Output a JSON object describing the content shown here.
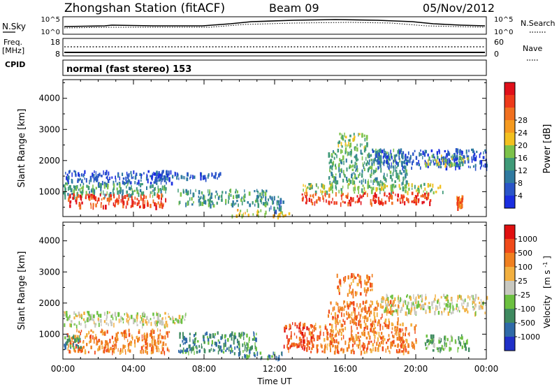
{
  "header": {
    "station": "Zhongshan Station (fitACF)",
    "beam": "Beam 09",
    "date": "05/Nov/2012"
  },
  "status_panels": {
    "nsky_label": "N.Sky",
    "nsky_ticks": [
      "10^5",
      "10^0"
    ],
    "nsearch_label": "N.Search",
    "nsearch_ticks": [
      "10^5",
      "10^0"
    ],
    "freq_label_1": "Freq.",
    "freq_label_2": "[MHz]",
    "freq_ticks": [
      "18",
      "8"
    ],
    "nave_label": "Nave",
    "nave_ticks": [
      "60",
      "0"
    ],
    "cpid_label": "CPID",
    "cpid_value": "normal (fast stereo) 153"
  },
  "chart_data": [
    {
      "type": "heatmap",
      "panel": "power",
      "ylabel": "Slant Range [km]",
      "yticks": [
        "1000",
        "2000",
        "3000",
        "4000"
      ],
      "ylim": [
        200,
        4600
      ],
      "xlim": [
        0,
        24
      ],
      "colorbar_label": "Power [dB]",
      "colorbar_ticks": [
        "4",
        "8",
        "12",
        "16",
        "20",
        "24",
        "28"
      ],
      "colorbar_colors": [
        "#1a2ee0",
        "#2a55c8",
        "#2f7aa0",
        "#3f9a78",
        "#7cc24a",
        "#f2c020",
        "#f59a20",
        "#f07020",
        "#ee3a1a",
        "#e0101a"
      ],
      "regions": [
        {
          "t0": 0.0,
          "t1": 6.2,
          "r0": 1300,
          "r1": 1700,
          "level": 1
        },
        {
          "t0": 0.0,
          "t1": 5.8,
          "r0": 900,
          "r1": 1300,
          "level": 3
        },
        {
          "t0": 0.2,
          "t1": 5.8,
          "r0": 550,
          "r1": 950,
          "level": 8
        },
        {
          "t0": 5.0,
          "t1": 9.0,
          "r0": 1450,
          "r1": 1650,
          "level": 1
        },
        {
          "t0": 6.5,
          "t1": 11.5,
          "r0": 600,
          "r1": 1100,
          "level": 3
        },
        {
          "t0": 9.5,
          "t1": 12.8,
          "r0": 250,
          "r1": 450,
          "level": 5
        },
        {
          "t0": 11.5,
          "t1": 12.5,
          "r0": 400,
          "r1": 900,
          "level": 2
        },
        {
          "t0": 13.5,
          "t1": 21.5,
          "r0": 1000,
          "r1": 1300,
          "level": 4
        },
        {
          "t0": 13.5,
          "t1": 20.8,
          "r0": 650,
          "r1": 1000,
          "level": 8
        },
        {
          "t0": 15.0,
          "t1": 19.5,
          "r0": 1300,
          "r1": 2400,
          "level": 3
        },
        {
          "t0": 15.5,
          "t1": 17.2,
          "r0": 2400,
          "r1": 2900,
          "level": 4
        },
        {
          "t0": 17.5,
          "t1": 24.0,
          "r0": 1800,
          "r1": 2400,
          "level": 1
        },
        {
          "t0": 20.5,
          "t1": 23.0,
          "r0": 1900,
          "r1": 2200,
          "level": 4
        },
        {
          "t0": 22.3,
          "t1": 22.6,
          "r0": 500,
          "r1": 900,
          "level": 7
        }
      ]
    },
    {
      "type": "heatmap",
      "panel": "velocity",
      "ylabel": "Slant Range [km]",
      "yticks": [
        "1000",
        "2000",
        "3000",
        "4000"
      ],
      "ylim": [
        200,
        4600
      ],
      "xlim": [
        0,
        24
      ],
      "xticks": [
        "00:00",
        "04:00",
        "08:00",
        "12:00",
        "16:00",
        "20:00",
        "00:00"
      ],
      "xlabel": "Time UT",
      "colorbar_label": "Velocity",
      "colorbar_unit": "[m s",
      "colorbar_unit_sup": "-1",
      "colorbar_unit_end": "]",
      "colorbar_ticks": [
        "1000",
        "500",
        "100",
        "25",
        "-25",
        "-100",
        "-500",
        "-1000"
      ],
      "colorbar_colors": [
        "#2030c8",
        "#2f6aa8",
        "#3f8a60",
        "#6cc040",
        "#c8c8c0",
        "#f2b040",
        "#f08020",
        "#f04a1a",
        "#e01010"
      ],
      "regions": [
        {
          "t0": 0.0,
          "t1": 7.0,
          "r0": 1300,
          "r1": 1750,
          "level": 4
        },
        {
          "t0": 0.2,
          "t1": 6.0,
          "r0": 450,
          "r1": 1200,
          "level": 6
        },
        {
          "t0": 0.0,
          "t1": 1.0,
          "r0": 600,
          "r1": 1000,
          "level": 2
        },
        {
          "t0": 6.5,
          "t1": 11.0,
          "r0": 450,
          "r1": 1100,
          "level": 2
        },
        {
          "t0": 9.5,
          "t1": 12.5,
          "r0": 250,
          "r1": 450,
          "level": 2
        },
        {
          "t0": 12.5,
          "t1": 14.2,
          "r0": 500,
          "r1": 1400,
          "level": 7
        },
        {
          "t0": 14.0,
          "t1": 20.0,
          "r0": 450,
          "r1": 1400,
          "level": 6
        },
        {
          "t0": 15.0,
          "t1": 19.0,
          "r0": 1400,
          "r1": 2100,
          "level": 6
        },
        {
          "t0": 15.5,
          "t1": 17.5,
          "r0": 2300,
          "r1": 3000,
          "level": 6
        },
        {
          "t0": 18.0,
          "t1": 24.0,
          "r0": 1700,
          "r1": 2300,
          "level": 4
        },
        {
          "t0": 20.5,
          "t1": 23.0,
          "r0": 500,
          "r1": 1000,
          "level": 3
        }
      ]
    }
  ]
}
